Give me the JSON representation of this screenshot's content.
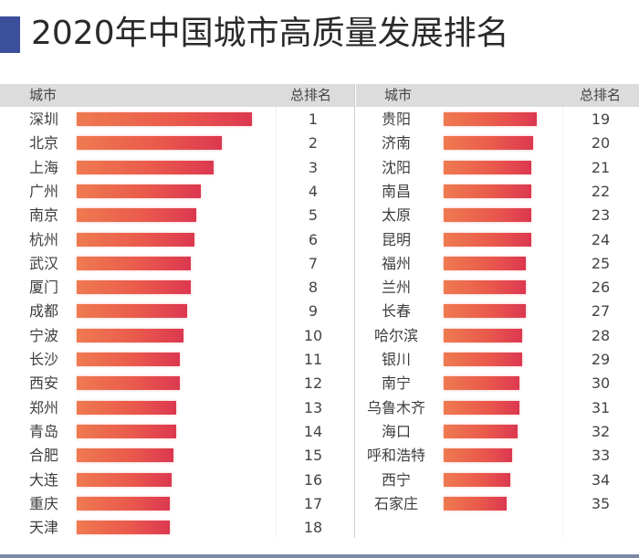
{
  "title": "2020年中国城市高质量发展排名",
  "colors": {
    "accent": "#3b4f9c",
    "bar_start": "#ee7a50",
    "bar_end": "#dc3850",
    "header_bg": "#dcdcdc"
  },
  "columns": {
    "city": "城市",
    "rank": "总排名"
  },
  "chart_data": {
    "type": "bar",
    "orientation": "horizontal",
    "title": "2020年中国城市高质量发展排名",
    "xlabel": "",
    "ylabel": "城市",
    "value_note": "relative bar length (深圳 = 100), estimated from bar widths; no axis shown",
    "categories": [
      "深圳",
      "北京",
      "上海",
      "广州",
      "南京",
      "杭州",
      "武汉",
      "厦门",
      "成都",
      "宁波",
      "长沙",
      "西安",
      "郑州",
      "青岛",
      "合肥",
      "大连",
      "重庆",
      "天津",
      "贵阳",
      "济南",
      "沈阳",
      "南昌",
      "太原",
      "昆明",
      "福州",
      "兰州",
      "长春",
      "哈尔滨",
      "银川",
      "南宁",
      "乌鲁木齐",
      "海口",
      "呼和浩特",
      "西宁",
      "石家庄"
    ],
    "ranks": [
      1,
      2,
      3,
      4,
      5,
      6,
      7,
      8,
      9,
      10,
      11,
      12,
      13,
      14,
      15,
      16,
      17,
      18,
      19,
      20,
      21,
      22,
      23,
      24,
      25,
      26,
      27,
      28,
      29,
      30,
      31,
      32,
      33,
      34,
      35
    ],
    "values": [
      100,
      83,
      78,
      71,
      68,
      67,
      65,
      65,
      63,
      61,
      59,
      59,
      57,
      57,
      55,
      54,
      53,
      53,
      53,
      51,
      50,
      50,
      50,
      50,
      47,
      47,
      47,
      45,
      45,
      43,
      43,
      42,
      39,
      38,
      36
    ],
    "xlim": [
      0,
      100
    ],
    "grid": false,
    "legend": "none"
  },
  "left": {
    "rows": [
      {
        "city": "深圳",
        "rank": "1"
      },
      {
        "city": "北京",
        "rank": "2"
      },
      {
        "city": "上海",
        "rank": "3"
      },
      {
        "city": "广州",
        "rank": "4"
      },
      {
        "city": "南京",
        "rank": "5"
      },
      {
        "city": "杭州",
        "rank": "6"
      },
      {
        "city": "武汉",
        "rank": "7"
      },
      {
        "city": "厦门",
        "rank": "8"
      },
      {
        "city": "成都",
        "rank": "9"
      },
      {
        "city": "宁波",
        "rank": "10"
      },
      {
        "city": "长沙",
        "rank": "11"
      },
      {
        "city": "西安",
        "rank": "12"
      },
      {
        "city": "郑州",
        "rank": "13"
      },
      {
        "city": "青岛",
        "rank": "14"
      },
      {
        "city": "合肥",
        "rank": "15"
      },
      {
        "city": "大连",
        "rank": "16"
      },
      {
        "city": "重庆",
        "rank": "17"
      },
      {
        "city": "天津",
        "rank": "18"
      }
    ]
  },
  "right": {
    "rows": [
      {
        "city": "贵阳",
        "rank": "19"
      },
      {
        "city": "济南",
        "rank": "20"
      },
      {
        "city": "沈阳",
        "rank": "21"
      },
      {
        "city": "南昌",
        "rank": "22"
      },
      {
        "city": "太原",
        "rank": "23"
      },
      {
        "city": "昆明",
        "rank": "24"
      },
      {
        "city": "福州",
        "rank": "25"
      },
      {
        "city": "兰州",
        "rank": "26"
      },
      {
        "city": "长春",
        "rank": "27"
      },
      {
        "city": "哈尔滨",
        "rank": "28"
      },
      {
        "city": "银川",
        "rank": "29"
      },
      {
        "city": "南宁",
        "rank": "30"
      },
      {
        "city": "乌鲁木齐",
        "rank": "31"
      },
      {
        "city": "海口",
        "rank": "32"
      },
      {
        "city": "呼和浩特",
        "rank": "33"
      },
      {
        "city": "西宁",
        "rank": "34"
      },
      {
        "city": "石家庄",
        "rank": "35"
      }
    ]
  }
}
